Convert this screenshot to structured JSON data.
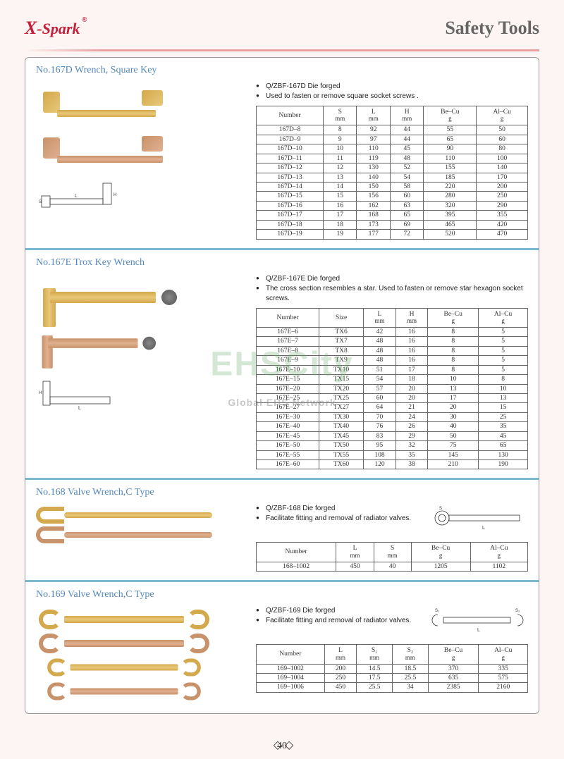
{
  "header": {
    "brand_prefix": "X",
    "brand_rest": "-Spark",
    "title": "Safety  Tools"
  },
  "watermark": {
    "main": "EHSCity",
    "sub": "Global EHS Network"
  },
  "page_number": "40",
  "sec167d": {
    "title": "No.167D Wrench, Square Key",
    "bullets": [
      "Q/ZBF-167D  Die forged",
      "Used to fasten or remove square socket screws ."
    ],
    "columns": [
      "Number",
      "S\nmm",
      "L\nmm",
      "H\nmm",
      "Be–Cu\ng",
      "Al–Cu\ng"
    ],
    "rows": [
      [
        "167D–8",
        "8",
        "92",
        "44",
        "55",
        "50"
      ],
      [
        "167D–9",
        "9",
        "97",
        "44",
        "65",
        "60"
      ],
      [
        "167D–10",
        "10",
        "110",
        "45",
        "90",
        "80"
      ],
      [
        "167D–11",
        "11",
        "119",
        "48",
        "110",
        "100"
      ],
      [
        "167D–12",
        "12",
        "130",
        "52",
        "155",
        "140"
      ],
      [
        "167D–13",
        "13",
        "140",
        "54",
        "185",
        "170"
      ],
      [
        "167D–14",
        "14",
        "150",
        "58",
        "220",
        "200"
      ],
      [
        "167D–15",
        "15",
        "156",
        "60",
        "280",
        "250"
      ],
      [
        "167D–16",
        "16",
        "162",
        "63",
        "320",
        "290"
      ],
      [
        "167D–17",
        "17",
        "168",
        "65",
        "395",
        "355"
      ],
      [
        "167D–18",
        "18",
        "173",
        "69",
        "465",
        "420"
      ],
      [
        "167D–19",
        "19",
        "177",
        "72",
        "520",
        "470"
      ]
    ]
  },
  "sec167e": {
    "title": "No.167E Trox Key Wrench",
    "bullets": [
      "Q/ZBF-167E      Die forged",
      "The cross section resembles a star. Used to fasten or remove star hexagon socket screws."
    ],
    "columns": [
      "Number",
      "Size",
      "L\nmm",
      "H\nmm",
      "Be–Cu\ng",
      "Al–Cu\ng"
    ],
    "rows": [
      [
        "167E–6",
        "TX6",
        "42",
        "16",
        "8",
        "5"
      ],
      [
        "167E–7",
        "TX7",
        "48",
        "16",
        "8",
        "5"
      ],
      [
        "167E–8",
        "TX8",
        "48",
        "16",
        "8",
        "5"
      ],
      [
        "167E–9",
        "TX9",
        "48",
        "16",
        "8",
        "5"
      ],
      [
        "167E–10",
        "TX10",
        "51",
        "17",
        "8",
        "5"
      ],
      [
        "167E–15",
        "TX15",
        "54",
        "18",
        "10",
        "8"
      ],
      [
        "167E–20",
        "TX20",
        "57",
        "20",
        "13",
        "10"
      ],
      [
        "167E–25",
        "TX25",
        "60",
        "20",
        "17",
        "13"
      ],
      [
        "167E–27",
        "TX27",
        "64",
        "21",
        "20",
        "15"
      ],
      [
        "167E–30",
        "TX30",
        "70",
        "24",
        "30",
        "25"
      ],
      [
        "167E–40",
        "TX40",
        "76",
        "26",
        "40",
        "35"
      ],
      [
        "167E–45",
        "TX45",
        "83",
        "29",
        "50",
        "45"
      ],
      [
        "167E–50",
        "TX50",
        "95",
        "32",
        "75",
        "65"
      ],
      [
        "167E–55",
        "TX55",
        "108",
        "35",
        "145",
        "130"
      ],
      [
        "167E–60",
        "TX60",
        "120",
        "38",
        "210",
        "190"
      ]
    ]
  },
  "sec168": {
    "title": "No.168 Valve Wrench,C Type",
    "bullets": [
      "Q/ZBF-168    Die forged",
      "Facilitate fitting and removal of radiator valves."
    ],
    "columns": [
      "Number",
      "L\nmm",
      "S\nmm",
      "Be–Cu\ng",
      "Al–Cu\ng"
    ],
    "rows": [
      [
        "168–1002",
        "450",
        "40",
        "1205",
        "1102"
      ]
    ]
  },
  "sec169": {
    "title": "No.169 Valve Wrench,C Type",
    "bullets": [
      "Q/ZBF-169      Die forged",
      "Facilitate fitting and removal of radiator valves."
    ],
    "columns": [
      "Number",
      "L\nmm",
      "S₁\nmm",
      "S₂\nmm",
      "Be–Cu\ng",
      "Al–Cu\ng"
    ],
    "rows": [
      [
        "169–1002",
        "200",
        "14.5",
        "18.5",
        "370",
        "335"
      ],
      [
        "169–1004",
        "250",
        "17.5",
        "25.5",
        "635",
        "575"
      ],
      [
        "169–1006",
        "450",
        "25.5",
        "34",
        "2385",
        "2160"
      ]
    ]
  }
}
